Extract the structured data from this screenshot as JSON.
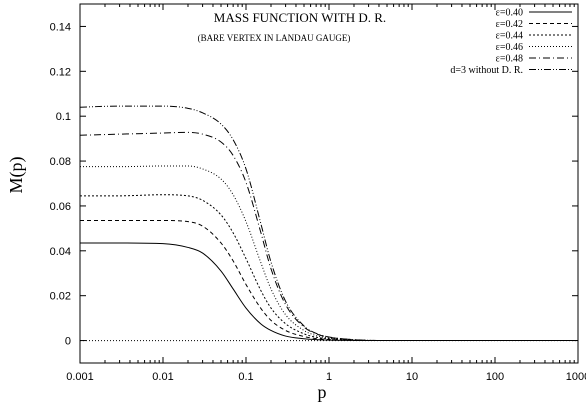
{
  "chart_data": {
    "type": "line",
    "title": "MASS FUNCTION WITH  D. R.",
    "subtitle": "(BARE VERTEX IN LANDAU GAUGE)",
    "xlabel": "p",
    "ylabel": "M(p)",
    "x_scale": "log",
    "xlim": [
      0.001,
      1000
    ],
    "ylim": [
      -0.01,
      0.15
    ],
    "x_ticks": [
      {
        "value": 0.001,
        "label": "0.001"
      },
      {
        "value": 0.01,
        "label": "0.01"
      },
      {
        "value": 0.1,
        "label": "0.1"
      },
      {
        "value": 1,
        "label": "1"
      },
      {
        "value": 10,
        "label": "10"
      },
      {
        "value": 100,
        "label": "100"
      },
      {
        "value": 1000,
        "label": "1000"
      }
    ],
    "y_ticks": [
      {
        "value": 0,
        "label": "0"
      },
      {
        "value": 0.02,
        "label": "0.02"
      },
      {
        "value": 0.04,
        "label": "0.04"
      },
      {
        "value": 0.06,
        "label": "0.06"
      },
      {
        "value": 0.08,
        "label": "0.08"
      },
      {
        "value": 0.1,
        "label": "0.1"
      },
      {
        "value": 0.12,
        "label": "0.12"
      },
      {
        "value": 0.14,
        "label": "0.14"
      }
    ],
    "grid": false,
    "legend_position": "top-right",
    "zero_line": true,
    "series": [
      {
        "name": "ε=0.40",
        "dash": "solid",
        "x": [
          0.001,
          0.003,
          0.01,
          0.02,
          0.03,
          0.05,
          0.07,
          0.1,
          0.15,
          0.2,
          0.3,
          0.5,
          0.7,
          1,
          2,
          5,
          10,
          100,
          1000
        ],
        "y": [
          0.0435,
          0.0435,
          0.0432,
          0.0415,
          0.039,
          0.031,
          0.023,
          0.0145,
          0.0075,
          0.0045,
          0.002,
          0.0008,
          0.0004,
          0.0002,
          5e-05,
          0,
          0,
          0,
          0
        ]
      },
      {
        "name": "ε=0.42",
        "dash": "dashed",
        "x": [
          0.001,
          0.003,
          0.01,
          0.02,
          0.03,
          0.05,
          0.07,
          0.1,
          0.15,
          0.2,
          0.3,
          0.5,
          0.7,
          1,
          2,
          5,
          10,
          100,
          1000
        ],
        "y": [
          0.0535,
          0.0535,
          0.0535,
          0.053,
          0.051,
          0.0435,
          0.0355,
          0.025,
          0.0145,
          0.009,
          0.0045,
          0.0018,
          0.0009,
          0.0005,
          0.0001,
          0,
          0,
          0,
          0
        ]
      },
      {
        "name": "ε=0.44",
        "dash": "dotted",
        "x": [
          0.001,
          0.003,
          0.01,
          0.02,
          0.03,
          0.05,
          0.07,
          0.1,
          0.15,
          0.2,
          0.3,
          0.5,
          0.7,
          1,
          2,
          5,
          10,
          100,
          1000
        ],
        "y": [
          0.0645,
          0.0645,
          0.065,
          0.0645,
          0.0625,
          0.056,
          0.048,
          0.0365,
          0.0225,
          0.0145,
          0.0075,
          0.003,
          0.0015,
          0.0008,
          0.0002,
          0,
          0,
          0,
          0
        ]
      },
      {
        "name": "ε=0.46",
        "dash": "fine-dotted",
        "x": [
          0.001,
          0.003,
          0.01,
          0.02,
          0.03,
          0.05,
          0.07,
          0.1,
          0.15,
          0.2,
          0.3,
          0.5,
          0.7,
          1,
          2,
          5,
          10,
          100,
          1000
        ],
        "y": [
          0.0775,
          0.0775,
          0.0778,
          0.0778,
          0.0765,
          0.072,
          0.065,
          0.053,
          0.035,
          0.023,
          0.0115,
          0.0045,
          0.0022,
          0.0011,
          0.0003,
          0,
          0,
          0,
          0
        ]
      },
      {
        "name": "ε=0.48",
        "dash": "dash-dot",
        "x": [
          0.001,
          0.003,
          0.01,
          0.02,
          0.03,
          0.05,
          0.07,
          0.1,
          0.15,
          0.2,
          0.3,
          0.5,
          0.7,
          1,
          2,
          5,
          10,
          100,
          1000
        ],
        "y": [
          0.0915,
          0.092,
          0.0925,
          0.0928,
          0.092,
          0.0885,
          0.0825,
          0.0705,
          0.0485,
          0.032,
          0.016,
          0.006,
          0.003,
          0.0015,
          0.0004,
          0,
          0,
          0,
          0
        ]
      },
      {
        "name": "d=3 without D. R.",
        "dash": "dash-dot-dot",
        "x": [
          0.001,
          0.003,
          0.01,
          0.02,
          0.03,
          0.05,
          0.07,
          0.1,
          0.15,
          0.2,
          0.3,
          0.5,
          0.7,
          1,
          2,
          5,
          10,
          100,
          1000
        ],
        "y": [
          0.104,
          0.1045,
          0.1045,
          0.1035,
          0.1015,
          0.0965,
          0.0895,
          0.0765,
          0.0525,
          0.035,
          0.0175,
          0.0065,
          0.0032,
          0.0016,
          0.0004,
          0,
          0,
          0,
          0
        ]
      }
    ]
  }
}
